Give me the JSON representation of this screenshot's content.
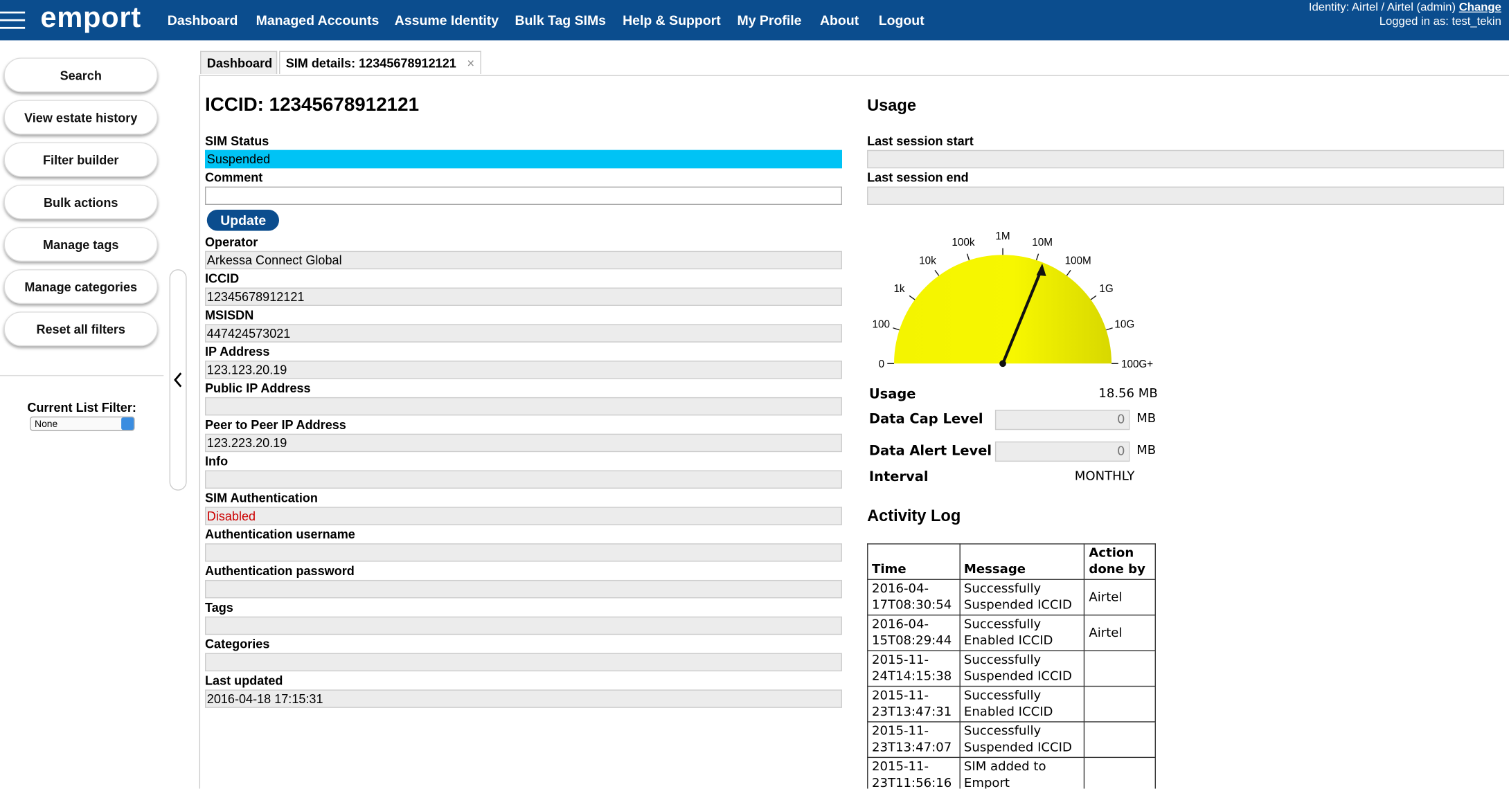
{
  "header": {
    "logo": "emport",
    "nav": [
      "Dashboard",
      "Managed Accounts",
      "Assume Identity",
      "Bulk Tag SIMs",
      "Help & Support",
      "My Profile",
      "About",
      "Logout"
    ],
    "identity": "Identity: Airtel / Airtel (admin)",
    "change": "Change",
    "logged_in": "Logged in as: test_tekin"
  },
  "sidebar": {
    "buttons": [
      "Search",
      "View estate history",
      "Filter builder",
      "Bulk actions",
      "Manage tags",
      "Manage categories",
      "Reset all filters"
    ],
    "filter_label": "Current List Filter:",
    "filter_value": "None"
  },
  "tabs": {
    "items": [
      "Dashboard",
      "SIM details: 12345678912121"
    ],
    "close": "×"
  },
  "details": {
    "title": "ICCID: 12345678912121",
    "update": "Update",
    "fields": [
      {
        "label": "SIM Status",
        "value": "Suspended"
      },
      {
        "label": "Comment"
      },
      {
        "label": "Operator",
        "value": "Arkessa Connect Global"
      },
      {
        "label": "ICCID",
        "value": "12345678912121"
      },
      {
        "label": "MSISDN",
        "value": "447424573021"
      },
      {
        "label": "IP Address",
        "value": "123.123.20.19"
      },
      {
        "label": "Public IP Address"
      },
      {
        "label": "Peer to Peer IP Address",
        "value": "123.223.20.19"
      },
      {
        "label": "Info"
      },
      {
        "label": "SIM Authentication",
        "value": "Disabled"
      },
      {
        "label": "Authentication username"
      },
      {
        "label": "Authentication password"
      },
      {
        "label": "Tags"
      },
      {
        "label": "Categories"
      },
      {
        "label": "Last updated",
        "value": "2016-04-18 17:15:31"
      }
    ]
  },
  "usage": {
    "title": "Usage",
    "fields": [
      "Last session start",
      "Last session end"
    ],
    "gauge_labels": [
      "0",
      "100",
      "1k",
      "10k",
      "100k",
      "1M",
      "10M",
      "100M",
      "1G",
      "10G",
      "100G+"
    ],
    "stats": [
      {
        "label": "Usage",
        "value": "18.56 MB"
      },
      {
        "label": "Data Cap Level",
        "value": "0",
        "unit": "MB"
      },
      {
        "label": "Data Alert Level",
        "value": "0",
        "unit": "MB"
      },
      {
        "label": "Interval",
        "value": "MONTHLY"
      }
    ]
  },
  "activity_log": {
    "title": "Activity Log",
    "headers": [
      "Time",
      "Message",
      "Action done by"
    ],
    "rows": [
      [
        "2016-04-17T08:30:54",
        "Successfully Suspended ICCID",
        "Airtel"
      ],
      [
        "2016-04-15T08:29:44",
        "Successfully Enabled ICCID",
        "Airtel"
      ],
      [
        "2015-11-24T14:15:38",
        "Successfully Suspended ICCID",
        ""
      ],
      [
        "2015-11-23T13:47:31",
        "Successfully Enabled ICCID",
        ""
      ],
      [
        "2015-11-23T13:47:07",
        "Successfully Suspended ICCID",
        ""
      ],
      [
        "2015-11-23T11:56:16",
        "SIM added to Emport",
        ""
      ]
    ]
  }
}
